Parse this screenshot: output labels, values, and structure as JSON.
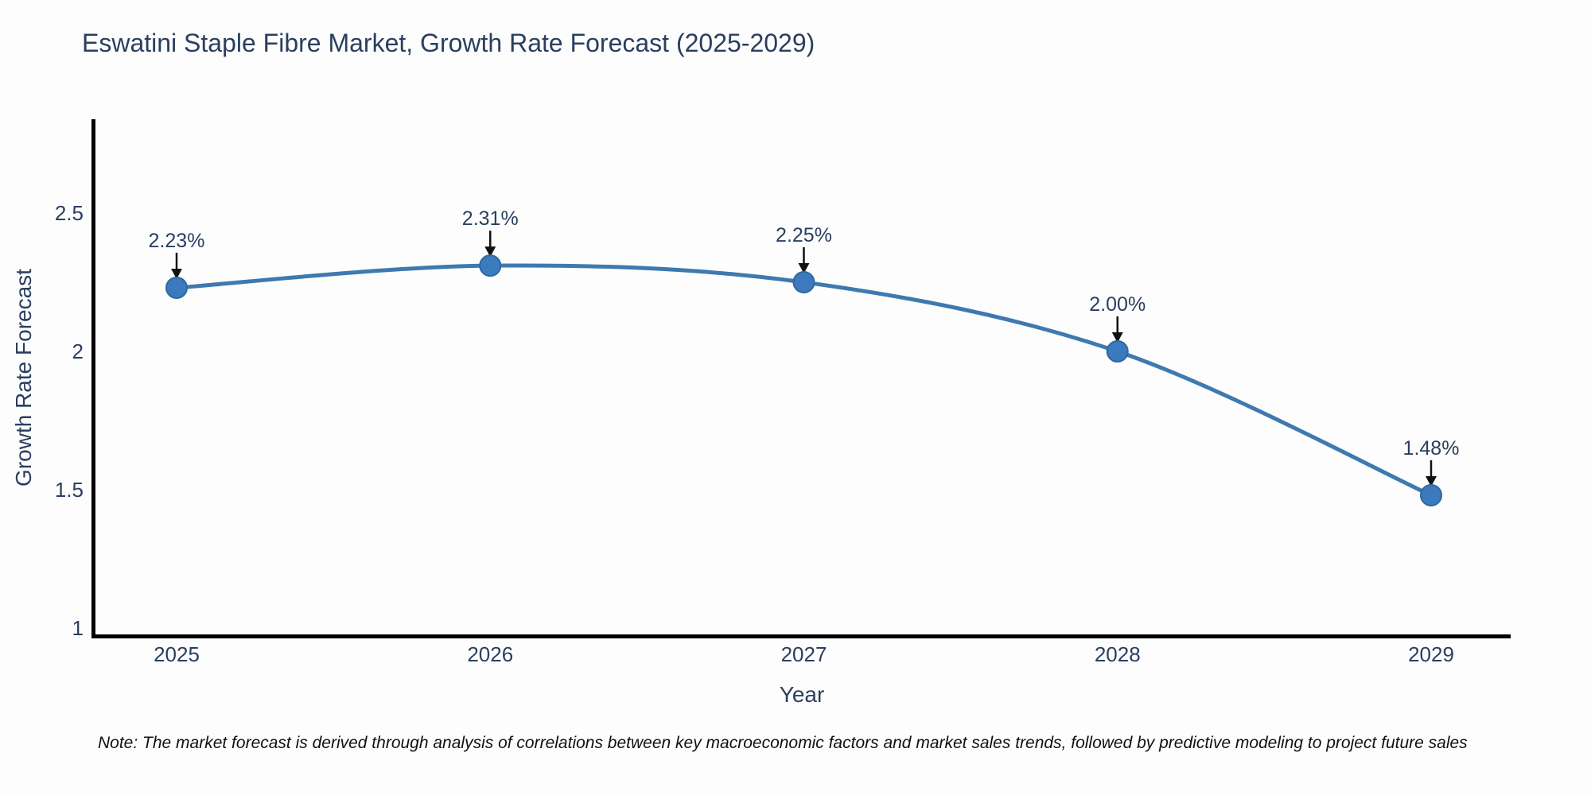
{
  "title": "Eswatini Staple Fibre Market, Growth Rate Forecast (2025-2029)",
  "note": "Note: The market forecast is derived through analysis of correlations between key macroeconomic factors and market sales trends, followed by predictive modeling to project future sales",
  "chart_data": {
    "type": "line",
    "title": "Eswatini Staple Fibre Market, Growth Rate Forecast (2025-2029)",
    "x": [
      2025,
      2026,
      2027,
      2028,
      2029
    ],
    "series": [
      {
        "name": "Growth Rate Forecast",
        "values": [
          2.23,
          2.31,
          2.25,
          2.0,
          1.48
        ]
      }
    ],
    "point_labels": [
      "2.23%",
      "2.31%",
      "2.25%",
      "2.00%",
      "1.48%"
    ],
    "xlabel": "Year",
    "ylabel": "Growth Rate Forecast",
    "xtick_labels": [
      "2025",
      "2026",
      "2027",
      "2028",
      "2029"
    ],
    "yticks": [
      1,
      1.5,
      2,
      2.5
    ],
    "ytick_labels": [
      "1",
      "1.5",
      "2",
      "2.5"
    ],
    "ylim": [
      0.97,
      2.84
    ],
    "line_shape": "spline",
    "grid": false,
    "legend": "none",
    "colors": {
      "line": "#3e79b0",
      "marker": "#3b7abd",
      "marker_edge": "#2f689e",
      "axis": "#000000",
      "text": "#2a3f5f",
      "annotation_text": "#2a3f5f",
      "annotation_arrow": "#111111",
      "note_text": "#111111",
      "background": "#fdfdfd"
    }
  }
}
